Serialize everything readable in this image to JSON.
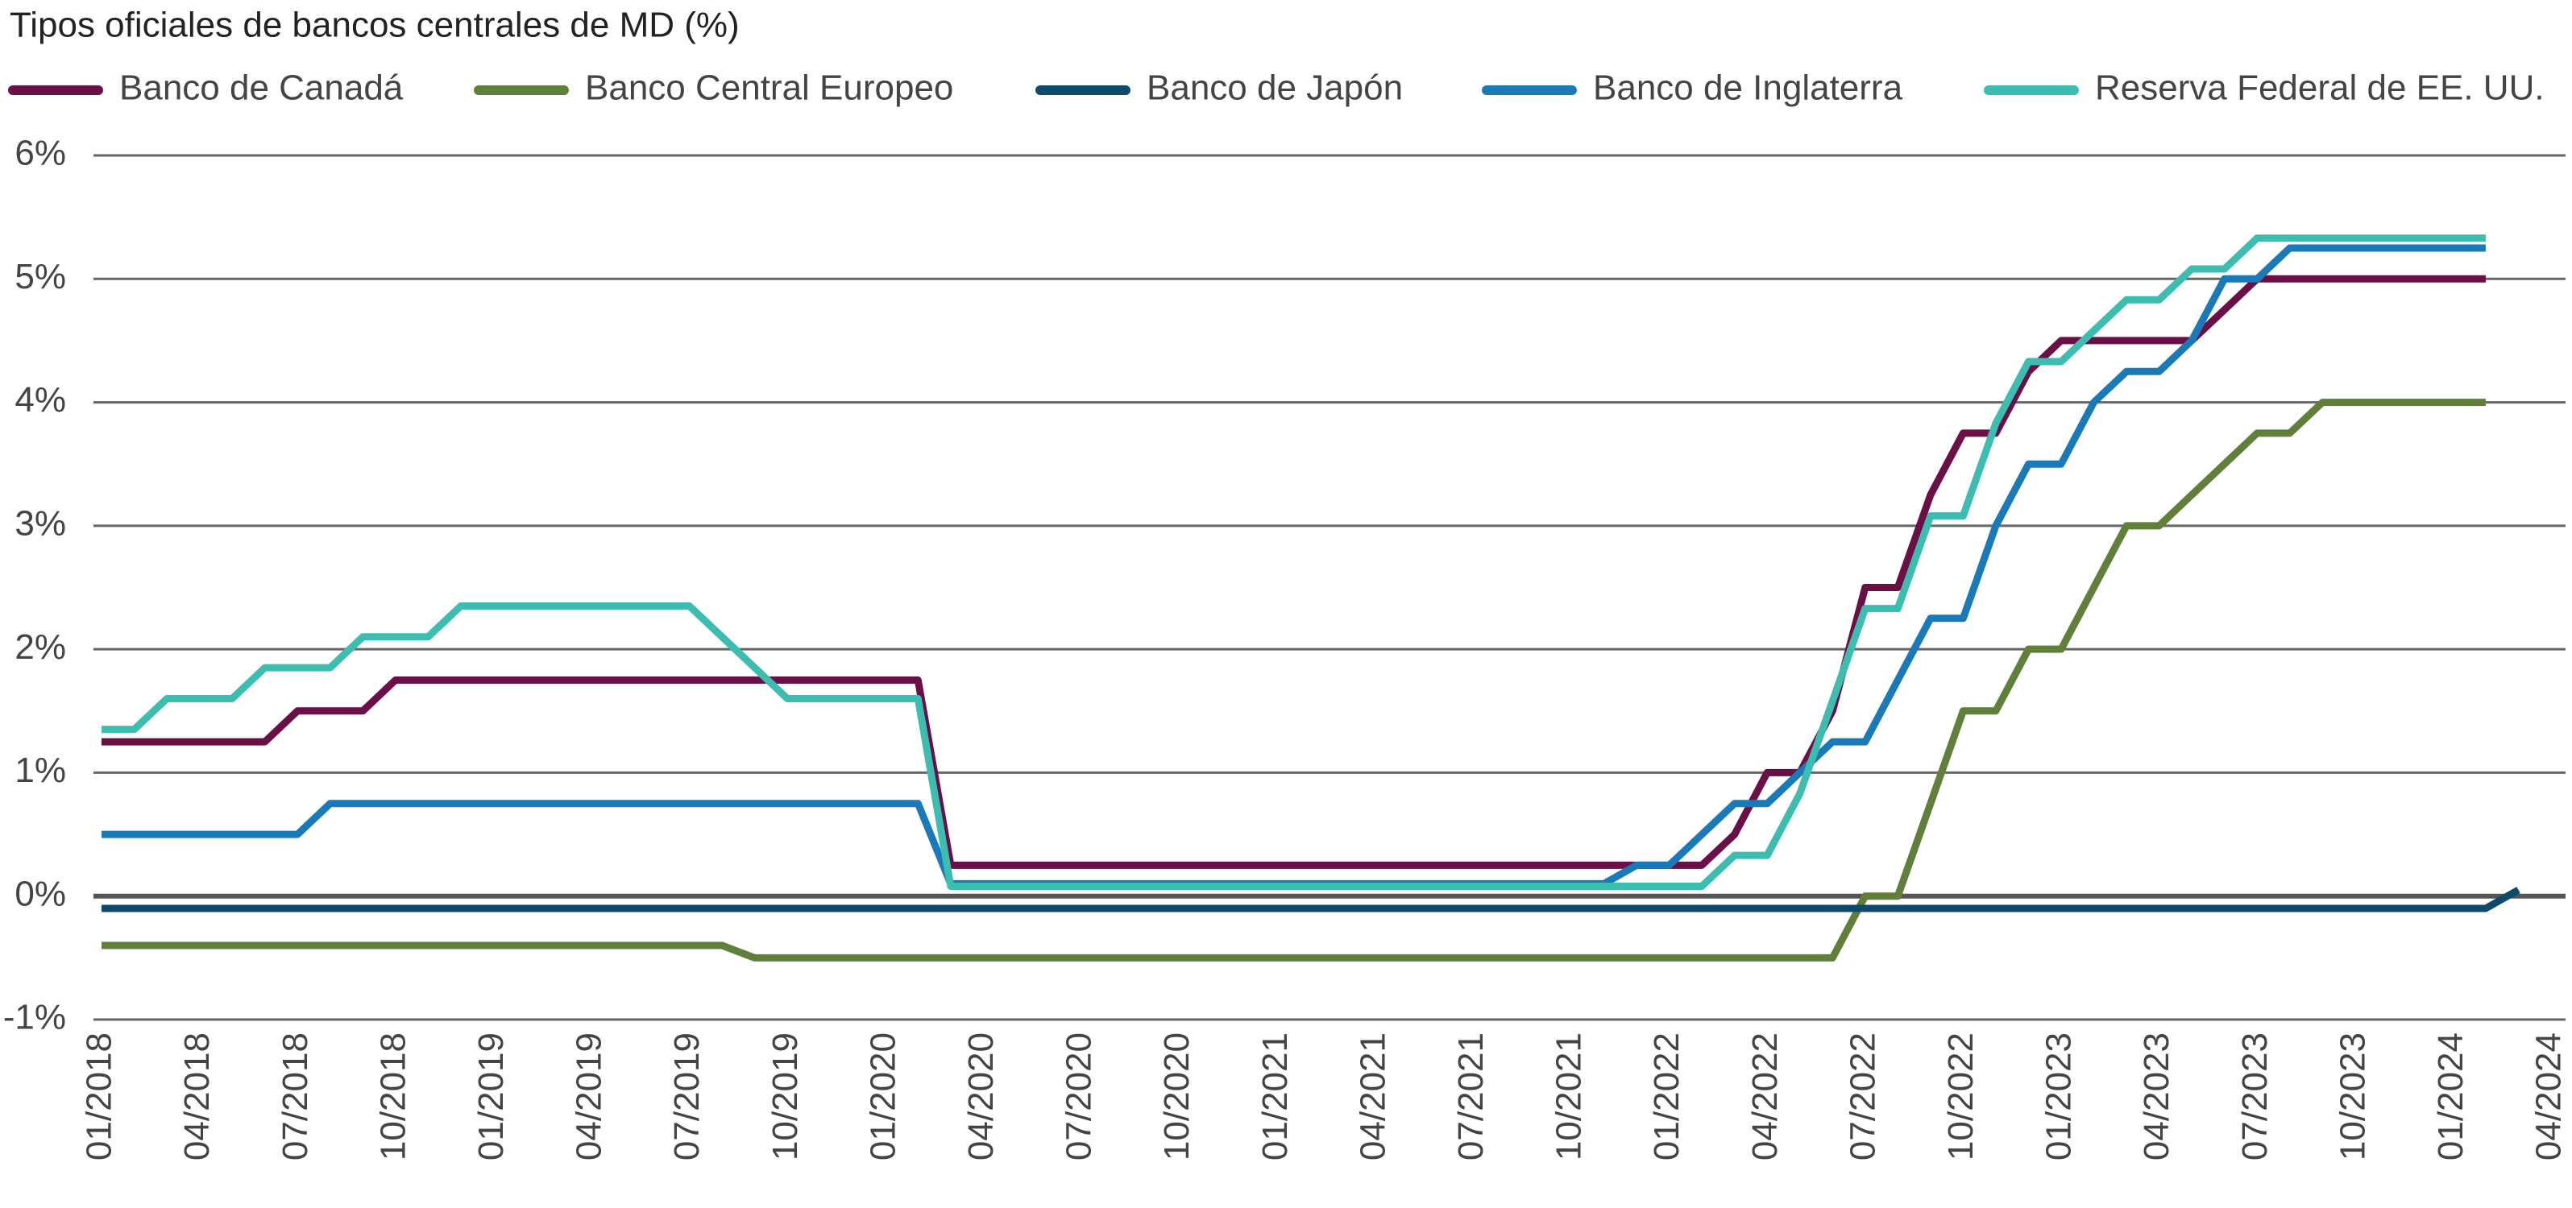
{
  "chart_data": {
    "type": "line",
    "title": "Tipos oficiales de bancos centrales de MD (%)",
    "x": [
      "01/2018",
      "02/2018",
      "03/2018",
      "04/2018",
      "05/2018",
      "06/2018",
      "07/2018",
      "08/2018",
      "09/2018",
      "10/2018",
      "11/2018",
      "12/2018",
      "01/2019",
      "02/2019",
      "03/2019",
      "04/2019",
      "05/2019",
      "06/2019",
      "07/2019",
      "08/2019",
      "09/2019",
      "10/2019",
      "11/2019",
      "12/2019",
      "01/2020",
      "02/2020",
      "03/2020",
      "04/2020",
      "05/2020",
      "06/2020",
      "07/2020",
      "08/2020",
      "09/2020",
      "10/2020",
      "11/2020",
      "12/2020",
      "01/2021",
      "02/2021",
      "03/2021",
      "04/2021",
      "05/2021",
      "06/2021",
      "07/2021",
      "08/2021",
      "09/2021",
      "10/2021",
      "11/2021",
      "12/2021",
      "01/2022",
      "02/2022",
      "03/2022",
      "04/2022",
      "05/2022",
      "06/2022",
      "07/2022",
      "08/2022",
      "09/2022",
      "10/2022",
      "11/2022",
      "12/2022",
      "01/2023",
      "02/2023",
      "03/2023",
      "04/2023",
      "05/2023",
      "06/2023",
      "07/2023",
      "08/2023",
      "09/2023",
      "10/2023",
      "11/2023",
      "12/2023",
      "01/2024",
      "02/2024",
      "03/2024",
      "04/2024"
    ],
    "series": [
      {
        "name": "Banco de Canadá",
        "color": "#6b0f47",
        "values": [
          1.25,
          1.25,
          1.25,
          1.25,
          1.25,
          1.25,
          1.5,
          1.5,
          1.5,
          1.75,
          1.75,
          1.75,
          1.75,
          1.75,
          1.75,
          1.75,
          1.75,
          1.75,
          1.75,
          1.75,
          1.75,
          1.75,
          1.75,
          1.75,
          1.75,
          1.75,
          0.25,
          0.25,
          0.25,
          0.25,
          0.25,
          0.25,
          0.25,
          0.25,
          0.25,
          0.25,
          0.25,
          0.25,
          0.25,
          0.25,
          0.25,
          0.25,
          0.25,
          0.25,
          0.25,
          0.25,
          0.25,
          0.25,
          0.25,
          0.25,
          0.5,
          1.0,
          1.0,
          1.5,
          2.5,
          2.5,
          3.25,
          3.75,
          3.75,
          4.25,
          4.5,
          4.5,
          4.5,
          4.5,
          4.5,
          4.75,
          5.0,
          5.0,
          5.0,
          5.0,
          5.0,
          5.0,
          5.0,
          5.0,
          null,
          null
        ]
      },
      {
        "name": "Banco Central Europeo",
        "color": "#5f7f3a",
        "values": [
          -0.4,
          -0.4,
          -0.4,
          -0.4,
          -0.4,
          -0.4,
          -0.4,
          -0.4,
          -0.4,
          -0.4,
          -0.4,
          -0.4,
          -0.4,
          -0.4,
          -0.4,
          -0.4,
          -0.4,
          -0.4,
          -0.4,
          -0.4,
          -0.5,
          -0.5,
          -0.5,
          -0.5,
          -0.5,
          -0.5,
          -0.5,
          -0.5,
          -0.5,
          -0.5,
          -0.5,
          -0.5,
          -0.5,
          -0.5,
          -0.5,
          -0.5,
          -0.5,
          -0.5,
          -0.5,
          -0.5,
          -0.5,
          -0.5,
          -0.5,
          -0.5,
          -0.5,
          -0.5,
          -0.5,
          -0.5,
          -0.5,
          -0.5,
          -0.5,
          -0.5,
          -0.5,
          -0.5,
          0.0,
          0.0,
          0.75,
          1.5,
          1.5,
          2.0,
          2.0,
          2.5,
          3.0,
          3.0,
          3.25,
          3.5,
          3.75,
          3.75,
          4.0,
          4.0,
          4.0,
          4.0,
          4.0,
          4.0,
          null,
          null
        ]
      },
      {
        "name": "Banco de Japón",
        "color": "#0d4a6b",
        "values": [
          -0.1,
          -0.1,
          -0.1,
          -0.1,
          -0.1,
          -0.1,
          -0.1,
          -0.1,
          -0.1,
          -0.1,
          -0.1,
          -0.1,
          -0.1,
          -0.1,
          -0.1,
          -0.1,
          -0.1,
          -0.1,
          -0.1,
          -0.1,
          -0.1,
          -0.1,
          -0.1,
          -0.1,
          -0.1,
          -0.1,
          -0.1,
          -0.1,
          -0.1,
          -0.1,
          -0.1,
          -0.1,
          -0.1,
          -0.1,
          -0.1,
          -0.1,
          -0.1,
          -0.1,
          -0.1,
          -0.1,
          -0.1,
          -0.1,
          -0.1,
          -0.1,
          -0.1,
          -0.1,
          -0.1,
          -0.1,
          -0.1,
          -0.1,
          -0.1,
          -0.1,
          -0.1,
          -0.1,
          -0.1,
          -0.1,
          -0.1,
          -0.1,
          -0.1,
          -0.1,
          -0.1,
          -0.1,
          -0.1,
          -0.1,
          -0.1,
          -0.1,
          -0.1,
          -0.1,
          -0.1,
          -0.1,
          -0.1,
          -0.1,
          -0.1,
          -0.1,
          0.05,
          null
        ]
      },
      {
        "name": "Banco de Inglaterra",
        "color": "#1a7ab8",
        "values": [
          0.5,
          0.5,
          0.5,
          0.5,
          0.5,
          0.5,
          0.5,
          0.75,
          0.75,
          0.75,
          0.75,
          0.75,
          0.75,
          0.75,
          0.75,
          0.75,
          0.75,
          0.75,
          0.75,
          0.75,
          0.75,
          0.75,
          0.75,
          0.75,
          0.75,
          0.75,
          0.1,
          0.1,
          0.1,
          0.1,
          0.1,
          0.1,
          0.1,
          0.1,
          0.1,
          0.1,
          0.1,
          0.1,
          0.1,
          0.1,
          0.1,
          0.1,
          0.1,
          0.1,
          0.1,
          0.1,
          0.1,
          0.25,
          0.25,
          0.5,
          0.75,
          0.75,
          1.0,
          1.25,
          1.25,
          1.75,
          2.25,
          2.25,
          3.0,
          3.5,
          3.5,
          4.0,
          4.25,
          4.25,
          4.5,
          5.0,
          5.0,
          5.25,
          5.25,
          5.25,
          5.25,
          5.25,
          5.25,
          5.25,
          null,
          null
        ]
      },
      {
        "name": "Reserva Federal de EE. UU.",
        "color": "#3dbdb0",
        "values": [
          1.35,
          1.35,
          1.6,
          1.6,
          1.6,
          1.85,
          1.85,
          1.85,
          2.1,
          2.1,
          2.1,
          2.35,
          2.35,
          2.35,
          2.35,
          2.35,
          2.35,
          2.35,
          2.35,
          2.1,
          1.85,
          1.6,
          1.6,
          1.6,
          1.6,
          1.6,
          0.08,
          0.08,
          0.08,
          0.08,
          0.08,
          0.08,
          0.08,
          0.08,
          0.08,
          0.08,
          0.08,
          0.08,
          0.08,
          0.08,
          0.08,
          0.08,
          0.08,
          0.08,
          0.08,
          0.08,
          0.08,
          0.08,
          0.08,
          0.08,
          0.33,
          0.33,
          0.83,
          1.58,
          2.33,
          2.33,
          3.08,
          3.08,
          3.83,
          4.33,
          4.33,
          4.58,
          4.83,
          4.83,
          5.08,
          5.08,
          5.33,
          5.33,
          5.33,
          5.33,
          5.33,
          5.33,
          5.33,
          5.33,
          null,
          null
        ]
      }
    ],
    "xticks": [
      "01/2018",
      "04/2018",
      "07/2018",
      "10/2018",
      "01/2019",
      "04/2019",
      "07/2019",
      "10/2019",
      "01/2020",
      "04/2020",
      "07/2020",
      "10/2020",
      "01/2021",
      "04/2021",
      "07/2021",
      "10/2021",
      "01/2022",
      "04/2022",
      "07/2022",
      "10/2022",
      "01/2023",
      "04/2023",
      "07/2023",
      "10/2023",
      "01/2024",
      "04/2024"
    ],
    "ylim": [
      -1,
      6
    ],
    "yticks": [
      {
        "value": -1,
        "label": "-1%"
      },
      {
        "value": 0,
        "label": "0%"
      },
      {
        "value": 1,
        "label": "1%"
      },
      {
        "value": 2,
        "label": "2%"
      },
      {
        "value": 3,
        "label": "3%"
      },
      {
        "value": 4,
        "label": "4%"
      },
      {
        "value": 5,
        "label": "5%"
      },
      {
        "value": 6,
        "label": "6%"
      }
    ],
    "grid": true,
    "legend": "top"
  }
}
